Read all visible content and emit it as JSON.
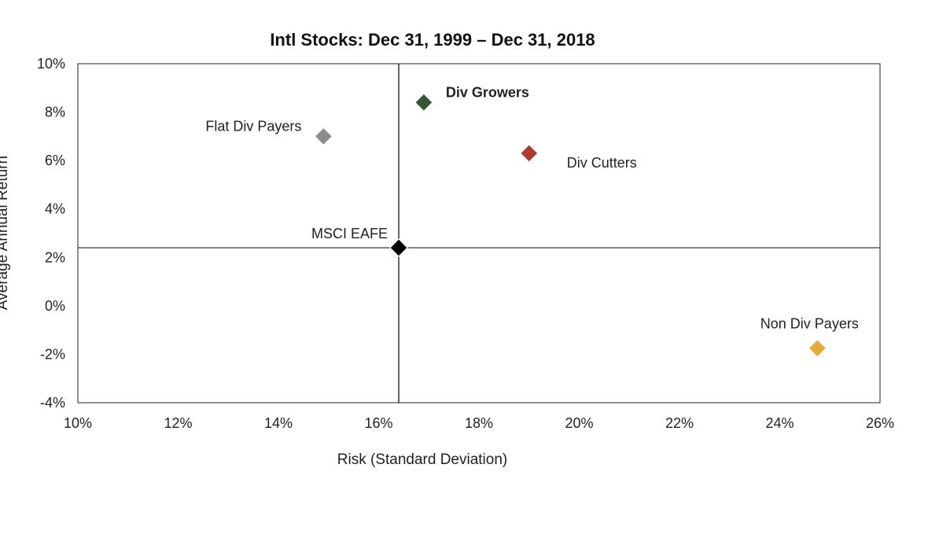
{
  "chart_data": {
    "type": "scatter",
    "title": "Intl Stocks: Dec 31, 1999 – Dec 31, 2018",
    "xlabel": "Risk (Standard Deviation)",
    "ylabel": "Average Annual Return",
    "xlim": [
      10,
      26
    ],
    "ylim": [
      -4,
      10
    ],
    "x_ticks": [
      10,
      12,
      14,
      16,
      18,
      20,
      22,
      24,
      26
    ],
    "y_ticks": [
      -4,
      -2,
      0,
      2,
      4,
      6,
      8,
      10
    ],
    "x_tick_labels": [
      "10%",
      "12%",
      "14%",
      "16%",
      "18%",
      "20%",
      "22%",
      "24%",
      "26%"
    ],
    "y_tick_labels": [
      "-4%",
      "-2%",
      "0%",
      "2%",
      "4%",
      "6%",
      "8%",
      "10%"
    ],
    "grid": false,
    "legend": "none",
    "reference_lines": {
      "vertical_x": 16.4,
      "horizontal_y": 2.4,
      "vertical_color": "#000000",
      "horizontal_color": "#2d4a22"
    },
    "points": [
      {
        "label": "Div Growers",
        "x": 16.9,
        "y": 8.4,
        "color": "#375534",
        "bold": true,
        "label_pos": "right"
      },
      {
        "label": "Flat Div Payers",
        "x": 14.9,
        "y": 7.0,
        "color": "#8c8c8c",
        "bold": false,
        "label_pos": "upper-left"
      },
      {
        "label": "Div Cutters",
        "x": 19.0,
        "y": 6.3,
        "color": "#b03a2e",
        "bold": false,
        "label_pos": "lower-right"
      },
      {
        "label": "MSCI EAFE",
        "x": 16.4,
        "y": 2.4,
        "color": "#000000",
        "bold": false,
        "label_pos": "upper-left"
      },
      {
        "label": "Non Div Payers",
        "x": 24.75,
        "y": -1.75,
        "color": "#e6a93a",
        "bold": false,
        "label_pos": "above"
      }
    ]
  }
}
